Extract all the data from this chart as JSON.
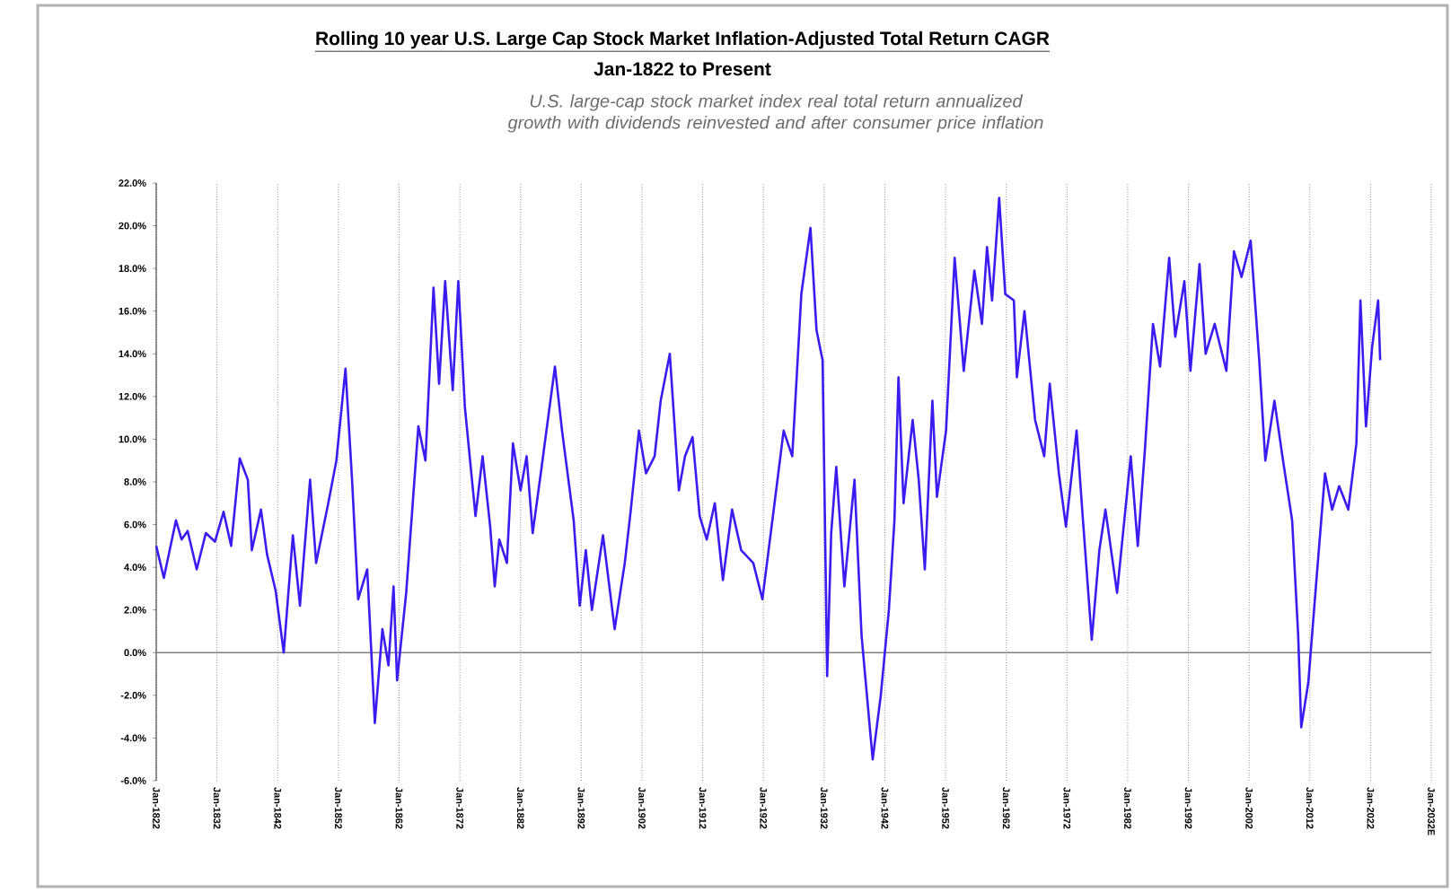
{
  "chart_data": {
    "type": "line",
    "title": "Rolling 10 year U.S. Large Cap Stock Market Inflation-Adjusted Total Return CAGR",
    "subtitle": "Jan-1822 to Present",
    "annotations": [
      "U.S. large-cap stock market index real total return annualized growth with dividends reinvested and *after* consumer price inflation"
    ],
    "series": [
      {
        "color": "#3a1cf0",
        "x": [
          "1822-01",
          "1823-04",
          "1825-04",
          "1826-03",
          "1827-03",
          "1828-09",
          "1830-03",
          "1831-09",
          "1833-02",
          "1834-05",
          "1835-10",
          "1837-02",
          "1837-10",
          "1839-04",
          "1840-04",
          "1841-09",
          "1843-01",
          "1844-07",
          "1845-09",
          "1847-05",
          "1848-05",
          "1850-05",
          "1851-09",
          "1853-03",
          "1854-04",
          "1855-04",
          "1856-10",
          "1858-01",
          "1859-04",
          "1860-04",
          "1861-02",
          "1861-09",
          "1863-03",
          "1865-03",
          "1866-05",
          "1867-09",
          "1868-08",
          "1869-08",
          "1870-11",
          "1871-10",
          "1872-11",
          "1874-08",
          "1875-10",
          "1877-01",
          "1877-10",
          "1878-07",
          "1879-10",
          "1880-10",
          "1882-01",
          "1883-01",
          "1884-01",
          "1885-05",
          "1887-09",
          "1888-11",
          "1890-10",
          "1891-10",
          "1892-10",
          "1893-10",
          "1895-08",
          "1897-07",
          "1899-03",
          "1900-03",
          "1901-07",
          "1902-09",
          "1904-02",
          "1905-02",
          "1906-08",
          "1908-02",
          "1909-02",
          "1910-05",
          "1911-07",
          "1912-09",
          "1914-01",
          "1915-05",
          "1916-11",
          "1918-05",
          "1920-05",
          "1921-11",
          "1923-11",
          "1925-05",
          "1926-10",
          "1928-04",
          "1929-10",
          "1930-10",
          "1931-10",
          "1932-07",
          "1933-03",
          "1934-01",
          "1935-05",
          "1937-01",
          "1938-03",
          "1940-01",
          "1941-05",
          "1942-09",
          "1943-08",
          "1944-04",
          "1945-02",
          "1946-08",
          "1947-08",
          "1948-08",
          "1949-11",
          "1950-08",
          "1952-02",
          "1953-07",
          "1955-01",
          "1956-10",
          "1958-01",
          "1958-11",
          "1959-09",
          "1960-11",
          "1961-11",
          "1963-04",
          "1963-10",
          "1965-01",
          "1966-10",
          "1968-04",
          "1969-03",
          "1970-09",
          "1971-11",
          "1973-08",
          "1974-08",
          "1976-02",
          "1977-05",
          "1978-05",
          "1980-04",
          "1982-07",
          "1983-09",
          "1984-11",
          "1986-03",
          "1987-05",
          "1988-11",
          "1989-11",
          "1991-05",
          "1992-05",
          "1993-11",
          "1994-11",
          "1996-05",
          "1998-04",
          "1999-07",
          "2000-10",
          "2002-04",
          "2003-09",
          "2004-09",
          "2006-03",
          "2007-08",
          "2009-02",
          "2010-02",
          "2010-08",
          "2011-10",
          "2013-01",
          "2014-07",
          "2015-09",
          "2016-11",
          "2018-05",
          "2019-09",
          "2020-05",
          "2021-04",
          "2022-04",
          "2023-04",
          "2023-08"
        ],
        "values": [
          5.0,
          3.5,
          6.2,
          5.3,
          5.7,
          3.9,
          5.6,
          5.2,
          6.6,
          5.0,
          9.1,
          8.1,
          4.8,
          6.7,
          4.6,
          2.9,
          0.0,
          5.5,
          2.2,
          8.1,
          4.2,
          7.0,
          9.0,
          13.3,
          8.1,
          2.5,
          3.9,
          -3.3,
          1.1,
          -0.6,
          3.1,
          -1.3,
          2.8,
          10.6,
          9.0,
          17.1,
          12.6,
          17.4,
          12.3,
          17.4,
          11.5,
          6.4,
          9.2,
          5.9,
          3.1,
          5.3,
          4.2,
          9.8,
          7.6,
          9.2,
          5.6,
          8.4,
          13.4,
          10.4,
          6.2,
          2.2,
          4.8,
          2.0,
          5.5,
          1.1,
          4.2,
          6.7,
          10.4,
          8.4,
          9.2,
          11.8,
          14.0,
          7.6,
          9.2,
          10.1,
          6.4,
          5.3,
          7.0,
          3.4,
          6.7,
          4.8,
          4.2,
          2.5,
          7.0,
          10.4,
          9.2,
          16.8,
          19.9,
          15.1,
          13.7,
          -1.1,
          5.6,
          8.7,
          3.1,
          8.1,
          0.8,
          -5.0,
          -2.0,
          2.0,
          6.2,
          12.9,
          7.0,
          10.9,
          8.1,
          3.9,
          11.8,
          7.3,
          10.4,
          18.5,
          13.2,
          17.9,
          15.4,
          19.0,
          16.5,
          21.3,
          16.8,
          16.5,
          12.9,
          16.0,
          10.9,
          9.2,
          12.6,
          8.4,
          5.9,
          10.4,
          6.4,
          0.6,
          4.8,
          6.7,
          2.8,
          9.2,
          5.0,
          9.5,
          15.4,
          13.4,
          18.5,
          14.8,
          17.4,
          13.2,
          18.2,
          14.0,
          15.4,
          13.2,
          18.8,
          17.6,
          19.3,
          13.7,
          9.0,
          11.8,
          9.0,
          6.2,
          0.8,
          -3.5,
          -1.4,
          3.1,
          8.4,
          6.7,
          7.8,
          6.7,
          9.8,
          16.5,
          10.6,
          14.3,
          16.5,
          13.7
        ]
      }
    ],
    "xlim": [
      "1822-01",
      "2032-01"
    ],
    "xticks": [
      {
        "value": "1822-01",
        "label": "Jan-1822"
      },
      {
        "value": "1832-01",
        "label": "Jan-1832"
      },
      {
        "value": "1842-01",
        "label": "Jan-1842"
      },
      {
        "value": "1852-01",
        "label": "Jan-1852"
      },
      {
        "value": "1862-01",
        "label": "Jan-1862"
      },
      {
        "value": "1872-01",
        "label": "Jan-1872"
      },
      {
        "value": "1882-01",
        "label": "Jan-1882"
      },
      {
        "value": "1892-01",
        "label": "Jan-1892"
      },
      {
        "value": "1902-01",
        "label": "Jan-1902"
      },
      {
        "value": "1912-01",
        "label": "Jan-1912"
      },
      {
        "value": "1922-01",
        "label": "Jan-1922"
      },
      {
        "value": "1932-01",
        "label": "Jan-1932"
      },
      {
        "value": "1942-01",
        "label": "Jan-1942"
      },
      {
        "value": "1952-01",
        "label": "Jan-1952"
      },
      {
        "value": "1962-01",
        "label": "Jan-1962"
      },
      {
        "value": "1972-01",
        "label": "Jan-1972"
      },
      {
        "value": "1982-01",
        "label": "Jan-1982"
      },
      {
        "value": "1992-01",
        "label": "Jan-1992"
      },
      {
        "value": "2002-01",
        "label": "Jan-2002"
      },
      {
        "value": "2012-01",
        "label": "Jan-2012"
      },
      {
        "value": "2022-01",
        "label": "Jan-2022"
      },
      {
        "value": "2032-01",
        "label": "Jan-2032E"
      }
    ],
    "ylim": [
      -6,
      22
    ],
    "yticks": [
      {
        "value": -6,
        "label": "-6.0%"
      },
      {
        "value": -4,
        "label": "-4.0%"
      },
      {
        "value": -2,
        "label": "-2.0%"
      },
      {
        "value": 0,
        "label": "0.0%"
      },
      {
        "value": 2,
        "label": "2.0%"
      },
      {
        "value": 4,
        "label": "4.0%"
      },
      {
        "value": 6,
        "label": "6.0%"
      },
      {
        "value": 8,
        "label": "8.0%"
      },
      {
        "value": 10,
        "label": "10.0%"
      },
      {
        "value": 12,
        "label": "12.0%"
      },
      {
        "value": 14,
        "label": "14.0%"
      },
      {
        "value": 16,
        "label": "16.0%"
      },
      {
        "value": 18,
        "label": "18.0%"
      },
      {
        "value": 20,
        "label": "20.0%"
      },
      {
        "value": 22,
        "label": "22.0%"
      }
    ],
    "grid": "x",
    "ref_lines": [
      {
        "axis": "y",
        "value": 0,
        "color": "#808080"
      }
    ],
    "marker": "none",
    "line_style": "solid"
  }
}
